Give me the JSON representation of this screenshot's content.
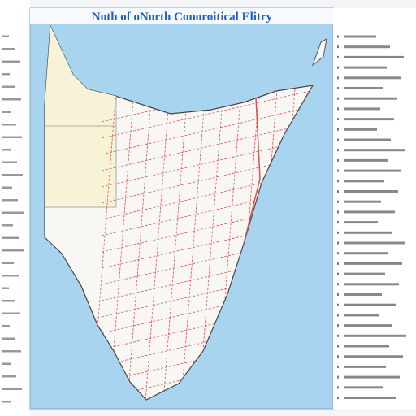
{
  "header": {
    "title": "Noth of oNorth Conoroitical Elitry"
  }
}
